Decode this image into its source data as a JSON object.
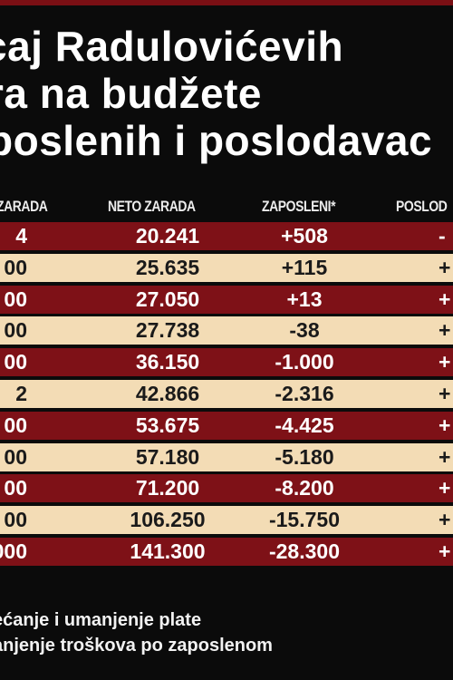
{
  "title": {
    "line1": "caj Radulovićevih",
    "line2": "ra na budžete",
    "line3": "poslenih i poslodavac"
  },
  "columns": [
    "ZARADA",
    "NETO ZARADA",
    "ZAPOSLENI*",
    "POSLOD"
  ],
  "rows": [
    {
      "c1": "4",
      "c2": "20.241",
      "c3": "+508",
      "c4": "-",
      "tone": "dark"
    },
    {
      "c1": "00",
      "c2": "25.635",
      "c3": "+115",
      "c4": "+",
      "tone": "light"
    },
    {
      "c1": "00",
      "c2": "27.050",
      "c3": "+13",
      "c4": "+",
      "tone": "dark"
    },
    {
      "c1": "00",
      "c2": "27.738",
      "c3": "-38",
      "c4": "+",
      "tone": "light"
    },
    {
      "c1": "00",
      "c2": "36.150",
      "c3": "-1.000",
      "c4": "+",
      "tone": "dark"
    },
    {
      "c1": "2",
      "c2": "42.866",
      "c3": "-2.316",
      "c4": "+",
      "tone": "light"
    },
    {
      "c1": "00",
      "c2": "53.675",
      "c3": "-4.425",
      "c4": "+",
      "tone": "dark"
    },
    {
      "c1": "00",
      "c2": "57.180",
      "c3": "-5.180",
      "c4": "+",
      "tone": "light"
    },
    {
      "c1": "00",
      "c2": "71.200",
      "c3": "-8.200",
      "c4": "+",
      "tone": "dark"
    },
    {
      "c1": "00",
      "c2": "106.250",
      "c3": "-15.750",
      "c4": "+",
      "tone": "light"
    },
    {
      "c1": "000",
      "c2": "141.300",
      "c3": "-28.300",
      "c4": "+",
      "tone": "dark"
    }
  ],
  "footer": {
    "line1": "ećanje i umanjenje plate",
    "line2": "anjenje troškova po zaposlenom"
  }
}
